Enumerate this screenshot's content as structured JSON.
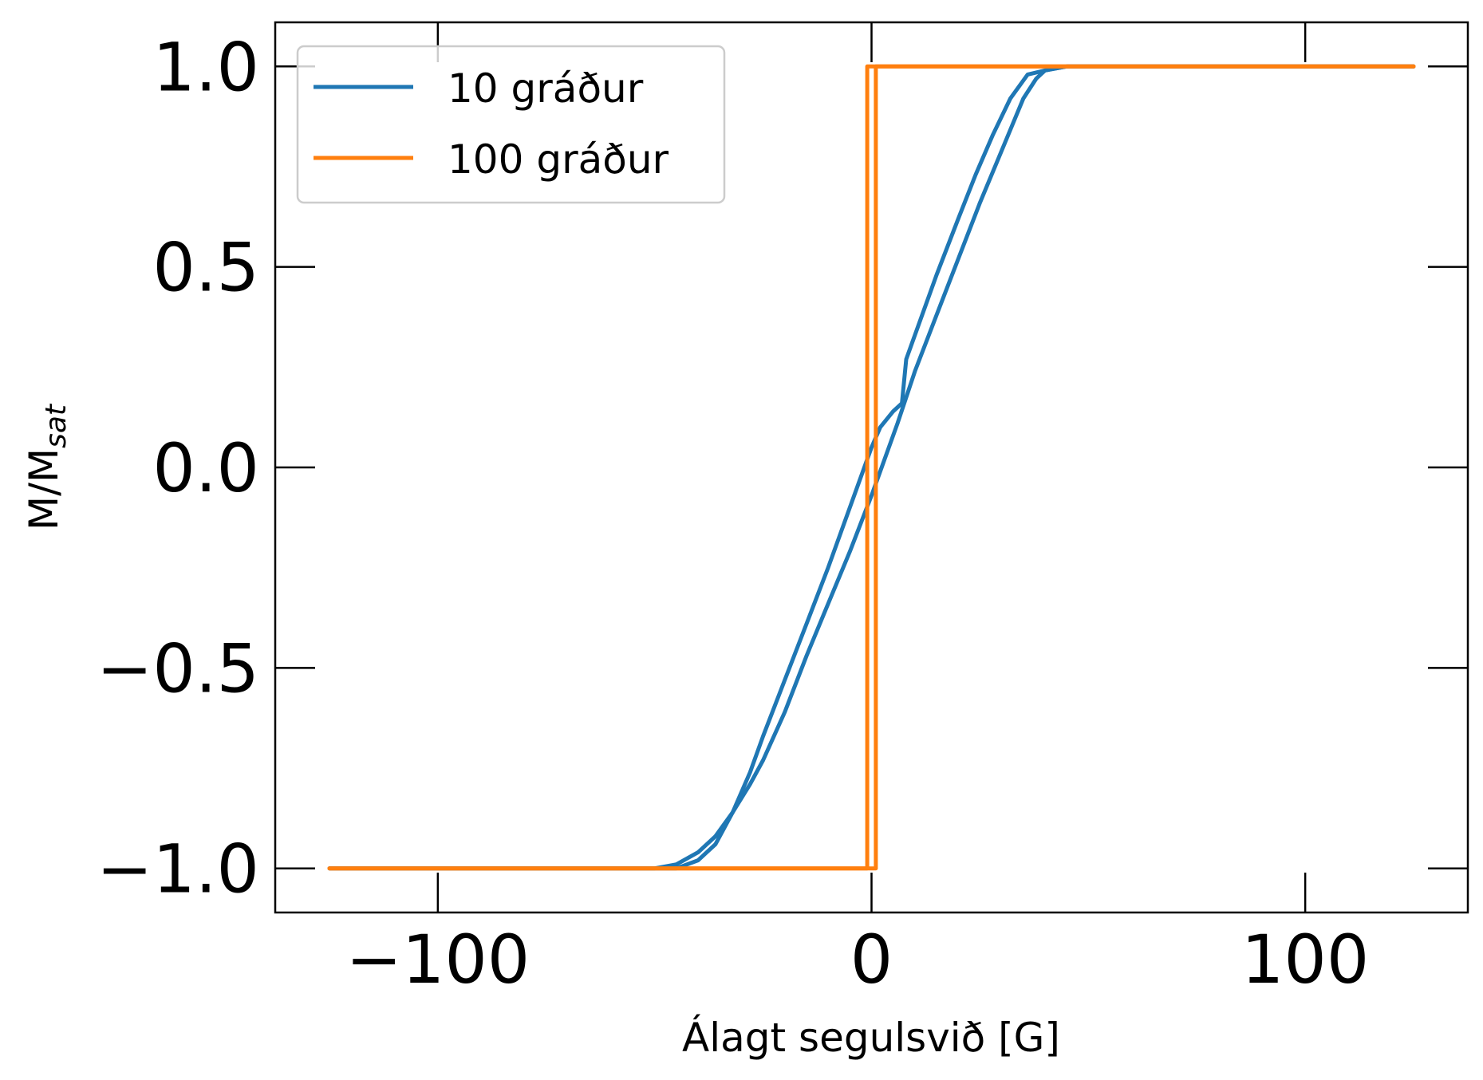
{
  "chart_data": {
    "type": "line",
    "title": "",
    "xlabel": "Álagt segulsvið [G]",
    "ylabel": "M/M",
    "ylabel_sub": "sat",
    "xlim": [
      -137.5,
      137.5
    ],
    "ylim": [
      -1.11,
      1.11
    ],
    "xticks": [
      -100,
      0,
      100
    ],
    "xtick_labels": [
      "−100",
      "0",
      "100"
    ],
    "yticks": [
      -1.0,
      -0.5,
      0.0,
      0.5,
      1.0
    ],
    "ytick_labels": [
      "−1.0",
      "−0.5",
      "0.0",
      "0.5",
      "1.0"
    ],
    "grid": false,
    "legend_position": "top-left",
    "series": [
      {
        "name": "10 gráður",
        "color": "#1f77b4",
        "branches": [
          {
            "x": [
              -125,
              -110,
              -90,
              -70,
              -50,
              -45,
              -40,
              -36,
              -32,
              -28,
              -25,
              -20,
              -15,
              -10,
              -5,
              0,
              2,
              6,
              10,
              15,
              20,
              25,
              30,
              35,
              38,
              40,
              45,
              60,
              90,
              125
            ],
            "y": [
              -1.0,
              -1.0,
              -1.0,
              -1.0,
              -1.0,
              -0.99,
              -0.96,
              -0.92,
              -0.86,
              -0.79,
              -0.73,
              -0.61,
              -0.47,
              -0.34,
              -0.21,
              -0.07,
              -0.01,
              0.11,
              0.24,
              0.38,
              0.52,
              0.66,
              0.79,
              0.92,
              0.97,
              0.99,
              1.0,
              1.0,
              1.0,
              1.0
            ]
          },
          {
            "x": [
              125,
              90,
              60,
              45,
              40,
              36,
              32,
              28,
              24,
              20,
              15,
              8,
              7,
              5,
              2,
              0,
              -5,
              -10,
              -15,
              -20,
              -25,
              -28,
              -32,
              -36,
              -40,
              -45,
              -60,
              -90,
              -125
            ],
            "y": [
              1.0,
              1.0,
              1.0,
              1.0,
              0.99,
              0.98,
              0.92,
              0.83,
              0.73,
              0.62,
              0.48,
              0.27,
              0.16,
              0.14,
              0.1,
              0.05,
              -0.1,
              -0.25,
              -0.39,
              -0.53,
              -0.67,
              -0.76,
              -0.86,
              -0.94,
              -0.98,
              -1.0,
              -1.0,
              -1.0,
              -1.0
            ]
          }
        ]
      },
      {
        "name": "100 gráður",
        "color": "#ff7f0e",
        "branches": [
          {
            "x": [
              -125,
              -100,
              -75,
              -50,
              -25,
              -5,
              1,
              1,
              25,
              50,
              75,
              100,
              125
            ],
            "y": [
              -1.0,
              -1.0,
              -1.0,
              -1.0,
              -1.0,
              -1.0,
              -1.0,
              1.0,
              1.0,
              1.0,
              1.0,
              1.0,
              1.0
            ]
          },
          {
            "x": [
              125,
              100,
              75,
              50,
              25,
              5,
              -1,
              -1,
              -25,
              -50,
              -75,
              -100,
              -125
            ],
            "y": [
              1.0,
              1.0,
              1.0,
              1.0,
              1.0,
              1.0,
              1.0,
              -1.0,
              -1.0,
              -1.0,
              -1.0,
              -1.0,
              -1.0
            ]
          }
        ]
      }
    ]
  }
}
